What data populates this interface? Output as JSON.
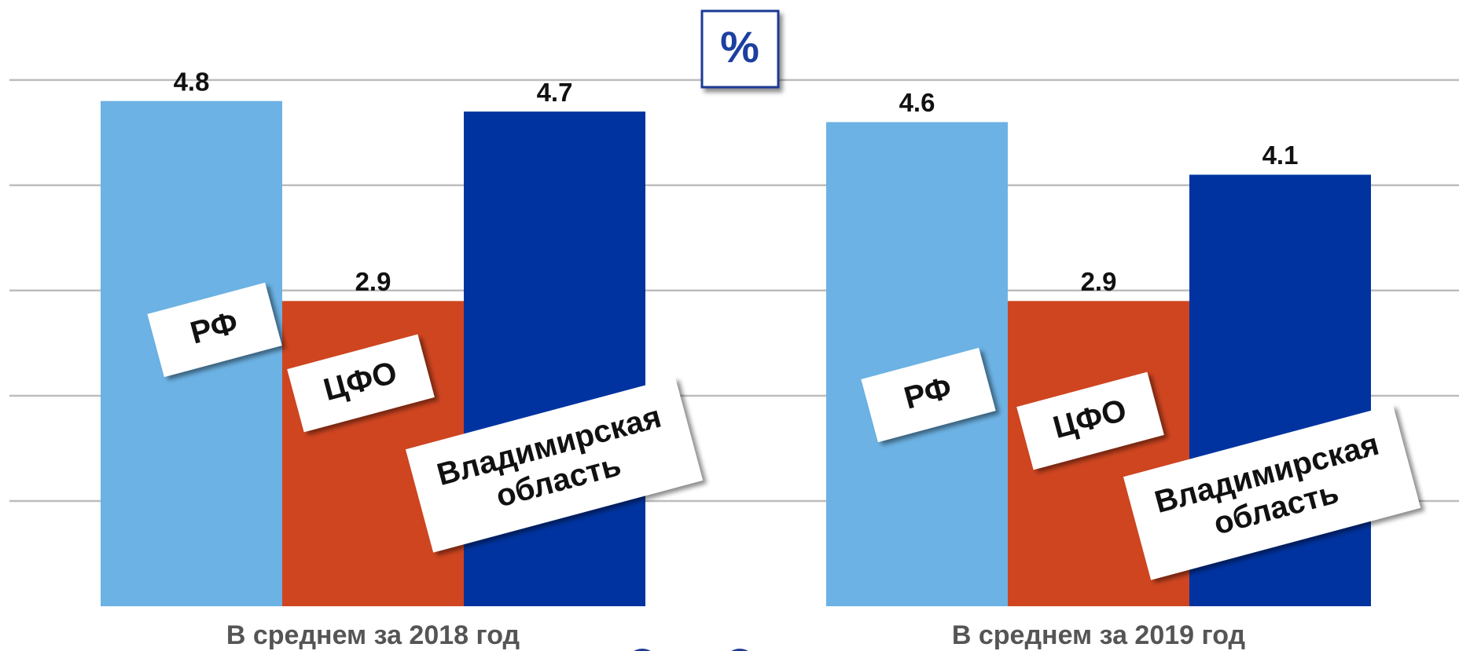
{
  "chart_data": {
    "type": "bar",
    "y_label": "%",
    "categories": [
      "В среднем за  2018 год",
      "В среднем за  2019 год"
    ],
    "series": [
      {
        "name": "РФ",
        "color": "#6cb2e4",
        "values": [
          4.8,
          4.6
        ]
      },
      {
        "name": "ЦФО",
        "color": "#cf4520",
        "values": [
          2.9,
          2.9
        ]
      },
      {
        "name": "Владимирская область",
        "color": "#0033a0",
        "values": [
          4.7,
          4.1
        ]
      }
    ],
    "ylim": [
      0,
      5.76
    ],
    "yticks": [
      1,
      2,
      3,
      4,
      5
    ],
    "grid": true
  }
}
